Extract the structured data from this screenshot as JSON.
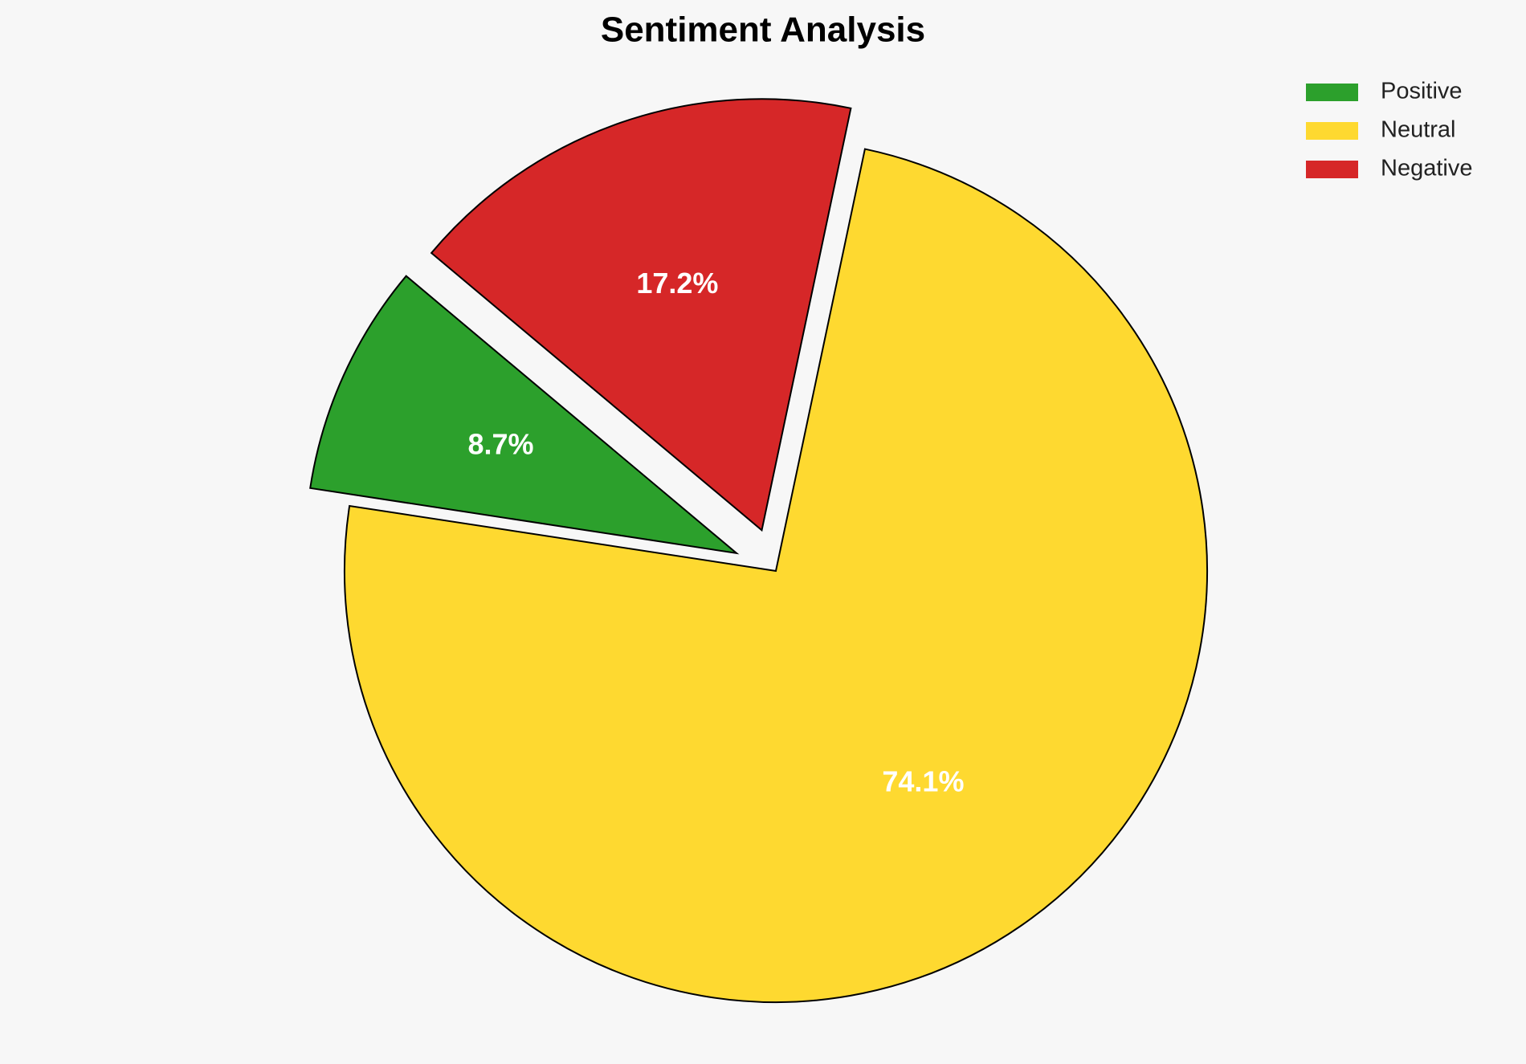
{
  "chart_data": {
    "type": "pie",
    "title": "Sentiment Analysis",
    "categories": [
      "Positive",
      "Neutral",
      "Negative"
    ],
    "values": [
      8.7,
      74.1,
      17.2
    ],
    "value_labels": [
      "8.7%",
      "74.1%",
      "17.2%"
    ],
    "colors": [
      "#2ca02c",
      "#fed930",
      "#d62728"
    ],
    "legend": "upper right"
  }
}
